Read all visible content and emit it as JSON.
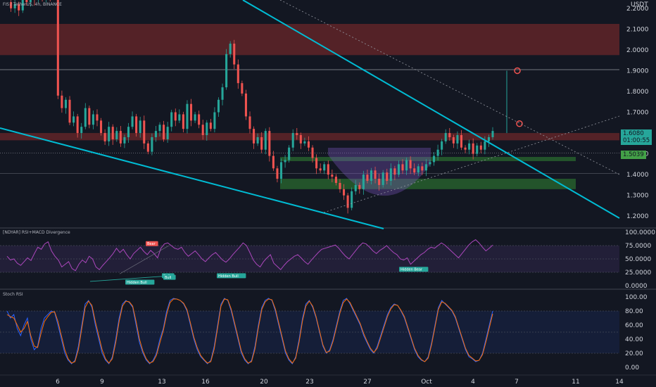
{
  "header": {
    "symbol": "FIS / TetherUS, 4h, BINANCE",
    "currency": "USDT"
  },
  "price_tags": {
    "current": "1.6080",
    "countdown": "01:00:55",
    "reference": "1.5039"
  },
  "indicators": {
    "rsi_title": "[NDYAR] RSI+MACD Divergence",
    "stoch_title": "Stoch RSI"
  },
  "colors": {
    "background": "#131722",
    "up": "#26a69a",
    "down": "#ef5350",
    "trendline": "#00bcd4",
    "zone_red": "#8b2c2c",
    "zone_green": "#2e7d32",
    "rsi_line": "#ab47bc",
    "stoch_k": "#2962ff",
    "stoch_d": "#ff6d00"
  },
  "chart_data": [
    {
      "type": "line",
      "title": "FIS / TetherUS, 4h, BINANCE",
      "chart_style": "candlestick",
      "y_unit": "USDT",
      "ylim": [
        1.15,
        2.24
      ],
      "y_ticks": [
        "2.2000",
        "2.1000",
        "2.0000",
        "1.9000",
        "1.8000",
        "1.7000",
        "1.6000",
        "1.5000",
        "1.4000",
        "1.3000",
        "1.2000"
      ],
      "x_ticks": [
        "6",
        "9",
        "13",
        "16",
        "20",
        "23",
        "27",
        "Oct",
        "4",
        "7",
        "11",
        "14"
      ],
      "series": [
        {
          "values": [
            2.23,
            2.2,
            2.22,
            2.19,
            2.24,
            2.23,
            2.25,
            2.24,
            2.26,
            2.25,
            2.27,
            2.26,
            2.28,
            1.78,
            1.72,
            1.76,
            1.65,
            1.68,
            1.6,
            1.63,
            1.72,
            1.64,
            1.69,
            1.66,
            1.6,
            1.56,
            1.63,
            1.57,
            1.61,
            1.55,
            1.58,
            1.63,
            1.68,
            1.6,
            1.66,
            1.55,
            1.51,
            1.58,
            1.61,
            1.64,
            1.57,
            1.63,
            1.7,
            1.66,
            1.69,
            1.62,
            1.74,
            1.66,
            1.69,
            1.64,
            1.59,
            1.65,
            1.62,
            1.7,
            1.76,
            1.82,
            1.98,
            2.03,
            1.93,
            1.84,
            1.79,
            1.68,
            1.62,
            1.55,
            1.58,
            1.52,
            1.61,
            1.49,
            1.43,
            1.38,
            1.46,
            1.47,
            1.53,
            1.6,
            1.59,
            1.55,
            1.56,
            1.53,
            1.48,
            1.43,
            1.42,
            1.45,
            1.4,
            1.39,
            1.36,
            1.33,
            1.3,
            1.24,
            1.32,
            1.35,
            1.33,
            1.4,
            1.37,
            1.42,
            1.38,
            1.35,
            1.41,
            1.37,
            1.43,
            1.4,
            1.45,
            1.42,
            1.47,
            1.43,
            1.41,
            1.44,
            1.42,
            1.45,
            1.46,
            1.49,
            1.52,
            1.56,
            1.6,
            1.58,
            1.55,
            1.59,
            1.53,
            1.52,
            1.55,
            1.5,
            1.54,
            1.52,
            1.56,
            1.58,
            1.61
          ]
        }
      ],
      "zones": [
        {
          "color": "red",
          "from": 1.975,
          "to": 2.125
        },
        {
          "color": "red",
          "from": 1.565,
          "to": 1.6
        },
        {
          "color": "green",
          "from": 1.33,
          "to": 1.38
        },
        {
          "color": "green",
          "from": 1.465,
          "to": 1.485
        }
      ],
      "horizontal_lines": [
        1.905,
        1.4055,
        1.5039
      ]
    },
    {
      "type": "line",
      "title": "[NDYAR] RSI+MACD Divergence",
      "y_ticks": [
        "100.0000",
        "75.0000",
        "50.0000",
        "25.0000",
        "0.0000"
      ],
      "ylim": [
        0,
        100
      ],
      "divergence_labels": [
        "Hidden Bull",
        "Bull",
        "Bull",
        "Hidden Bull",
        "Bear",
        "Hidden Bear"
      ],
      "series": [
        {
          "values": [
            55,
            48,
            50,
            42,
            38,
            45,
            52,
            47,
            60,
            72,
            68,
            78,
            82,
            65,
            55,
            48,
            35,
            40,
            45,
            32,
            28,
            40,
            48,
            43,
            55,
            50,
            35,
            30,
            38,
            45,
            52,
            60,
            70,
            62,
            68,
            58,
            50,
            60,
            66,
            72,
            64,
            58,
            66,
            60,
            52,
            70,
            78,
            80,
            75,
            70,
            68,
            72,
            62,
            55,
            60,
            65,
            58,
            50,
            45,
            52,
            58,
            62,
            55,
            48,
            44,
            50,
            58,
            65,
            72,
            80,
            75,
            62,
            48,
            40,
            35,
            45,
            52,
            58,
            42,
            36,
            30,
            38,
            45,
            50,
            55,
            58,
            52,
            45,
            40,
            48,
            55,
            62,
            68,
            70,
            72,
            74,
            76,
            70,
            62,
            55,
            50,
            58,
            66,
            74,
            80,
            78,
            72,
            65,
            60,
            66,
            70,
            75,
            68,
            62,
            58,
            50,
            48,
            52,
            40,
            46,
            52,
            58,
            62,
            68,
            72,
            70,
            75,
            80,
            76,
            70,
            64,
            58,
            52,
            60,
            68,
            76,
            82,
            86,
            80,
            72,
            65,
            70,
            76
          ]
        }
      ]
    },
    {
      "type": "line",
      "title": "Stoch RSI",
      "y_ticks": [
        "100.00",
        "80.00",
        "60.00",
        "40.00",
        "20.00",
        "0.00"
      ],
      "ylim": [
        0,
        100
      ],
      "series": [
        {
          "values": [
            80,
            70,
            75,
            55,
            45,
            60,
            70,
            40,
            25,
            30,
            55,
            70,
            75,
            80,
            78,
            60,
            40,
            20,
            10,
            5,
            10,
            30,
            60,
            90,
            95,
            85,
            60,
            40,
            20,
            10,
            5,
            15,
            40,
            70,
            90,
            95,
            92,
            85,
            60,
            35,
            20,
            10,
            5,
            10,
            20,
            40,
            55,
            80,
            95,
            98,
            97,
            95,
            90,
            80,
            60,
            40,
            25,
            15,
            10,
            5,
            10,
            30,
            60,
            90,
            98,
            95,
            80,
            60,
            40,
            20,
            10,
            5,
            10,
            30,
            60,
            85,
            95,
            98,
            95,
            80,
            60,
            40,
            20,
            10,
            5,
            15,
            40,
            70,
            90,
            95,
            85,
            70,
            50,
            30,
            20,
            25,
            40,
            60,
            80,
            95,
            98,
            90,
            80,
            70,
            60,
            45,
            35,
            25,
            20,
            30,
            45,
            60,
            75,
            85,
            90,
            88,
            80,
            70,
            55,
            40,
            25,
            15,
            10,
            8,
            15,
            35,
            60,
            85,
            95,
            90,
            85,
            80,
            70,
            55,
            40,
            25,
            15,
            12,
            8,
            10,
            20,
            40,
            60,
            80
          ]
        },
        {
          "values": [
            75,
            72,
            70,
            60,
            50,
            55,
            65,
            45,
            30,
            28,
            48,
            65,
            72,
            78,
            79,
            65,
            45,
            25,
            12,
            6,
            8,
            25,
            55,
            85,
            94,
            88,
            65,
            45,
            25,
            12,
            6,
            12,
            35,
            65,
            87,
            94,
            93,
            87,
            65,
            40,
            23,
            12,
            6,
            8,
            17,
            35,
            52,
            75,
            92,
            97,
            97,
            95,
            91,
            82,
            63,
            43,
            28,
            17,
            11,
            6,
            8,
            26,
            56,
            87,
            97,
            96,
            83,
            63,
            43,
            23,
            12,
            6,
            8,
            26,
            56,
            82,
            93,
            97,
            96,
            83,
            63,
            43,
            23,
            12,
            6,
            13,
            36,
            66,
            87,
            94,
            87,
            72,
            52,
            32,
            21,
            23,
            37,
            57,
            77,
            92,
            97,
            92,
            82,
            72,
            62,
            48,
            37,
            27,
            21,
            27,
            42,
            57,
            72,
            83,
            89,
            88,
            81,
            72,
            57,
            42,
            27,
            17,
            11,
            8,
            13,
            32,
            57,
            82,
            93,
            91,
            86,
            81,
            72,
            57,
            42,
            27,
            17,
            13,
            9,
            10,
            18,
            36,
            56,
            76
          ]
        }
      ]
    }
  ]
}
